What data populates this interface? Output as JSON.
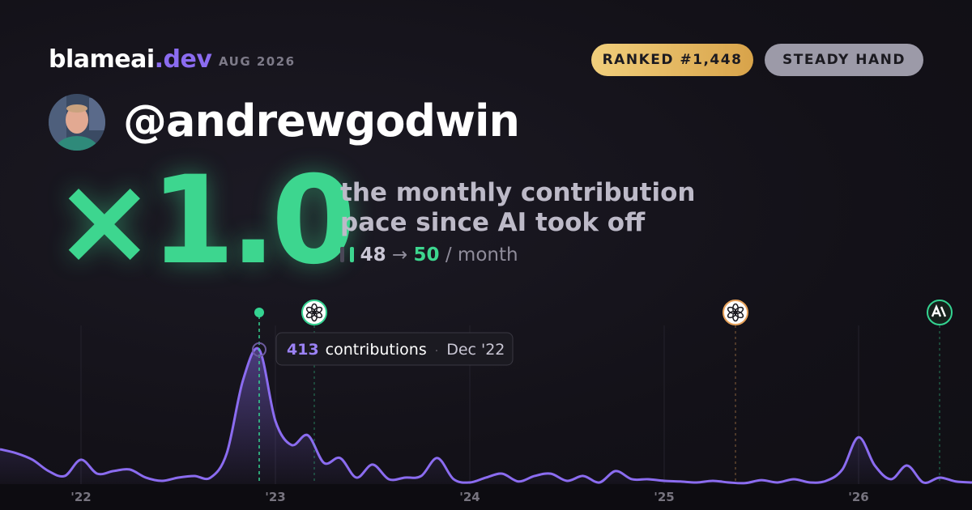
{
  "header": {
    "brand": "blameai",
    "brand_suffix": ".dev",
    "period": "AUG 2026",
    "badges": [
      "RANKED #1,448",
      "STEADY HAND"
    ]
  },
  "profile": {
    "username": "@andrewgodwin"
  },
  "stat": {
    "multiplier": "×1.0",
    "caption_lines": [
      "the monthly contribution",
      "pace since AI took off"
    ],
    "before": "48",
    "arrow": "→",
    "after": "50",
    "unit": "/ month"
  },
  "chart": {
    "type": "line",
    "color": "#8b6cf0",
    "highlight_color": "#34d391",
    "values": [
      107,
      95,
      75,
      40,
      25,
      75,
      32,
      40,
      45,
      20,
      10,
      20,
      25,
      20,
      95,
      319,
      413,
      194,
      120,
      150,
      65,
      80,
      20,
      60,
      15,
      20,
      25,
      80,
      15,
      5,
      20,
      32,
      8,
      25,
      32,
      10,
      25,
      5,
      40,
      15,
      15,
      10,
      8,
      5,
      10,
      5,
      3,
      12,
      5,
      15,
      5,
      10,
      45,
      144,
      57,
      15,
      57,
      5,
      20,
      8,
      5
    ],
    "xlim": [
      0,
      60
    ],
    "ylim": [
      0,
      450
    ],
    "xticks": [
      {
        "value": 5,
        "label": "'22"
      },
      {
        "value": 17,
        "label": "'23"
      },
      {
        "value": 29,
        "label": "'24"
      },
      {
        "value": 41,
        "label": "'25"
      },
      {
        "value": 53,
        "label": "'26"
      }
    ],
    "events": [
      {
        "x": 19.4,
        "color": "#34d391"
      },
      {
        "x": 45.4,
        "color": "#e8a25a"
      },
      {
        "x": 58,
        "color": "#34d391"
      }
    ],
    "tooltip": {
      "index": 16,
      "label": "contributions",
      "date": "Dec '22"
    }
  }
}
